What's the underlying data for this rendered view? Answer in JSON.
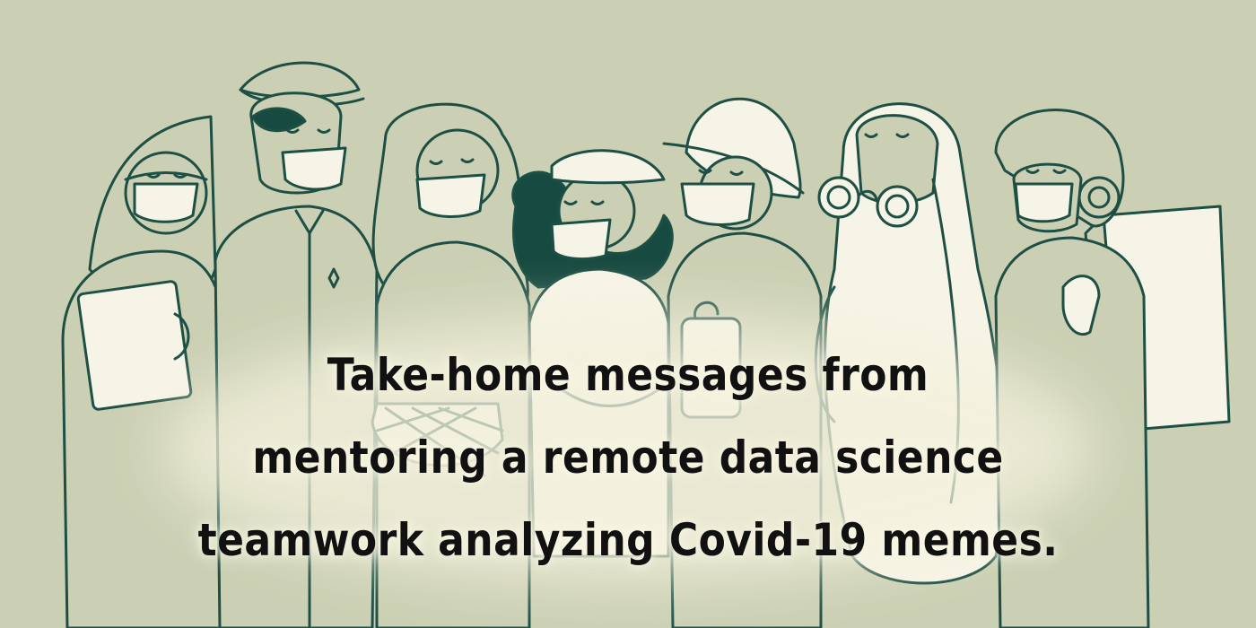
{
  "illustration": {
    "colors": {
      "background": "#cbd0b4",
      "ink": "#1e4f45",
      "dark_hair": "#174a40",
      "cream": "#f6f4e6",
      "glow": "#f3f0dc"
    },
    "figures": [
      {
        "name": "woman-with-tablet",
        "icon": "tablet-icon"
      },
      {
        "name": "man-with-cap"
      },
      {
        "name": "woman-long-hair"
      },
      {
        "name": "woman-with-beret",
        "icon": "basket-icon"
      },
      {
        "name": "worker-with-hard-hat"
      },
      {
        "name": "person-in-hazmat-suit",
        "icon": "gas-mask-icon"
      },
      {
        "name": "delivery-rider-with-helmet",
        "icon": "backpack-icon"
      }
    ]
  },
  "caption": {
    "line1": "Take-home messages from",
    "line2": "mentoring a remote data science",
    "line3": "teamwork analyzing Covid-19 memes."
  }
}
